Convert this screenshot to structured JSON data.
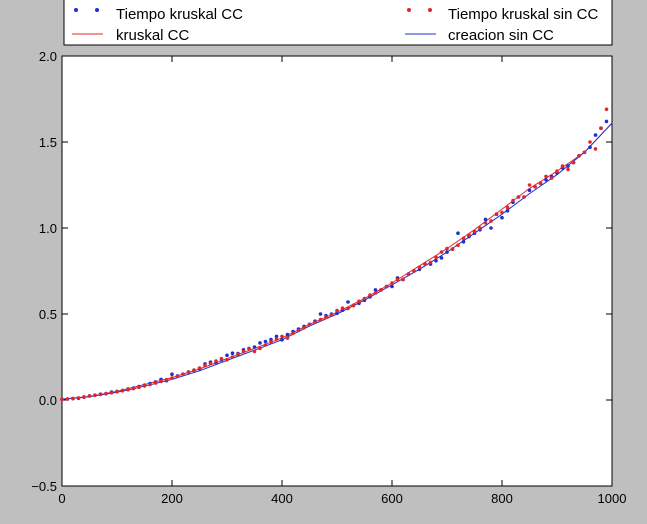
{
  "chart_data": {
    "type": "line",
    "title": "",
    "xlabel": "",
    "ylabel": "",
    "xlim": [
      0,
      1000
    ],
    "ylim": [
      -0.5,
      2.0
    ],
    "xticks": [
      "0",
      "200",
      "400",
      "600",
      "800",
      "1000"
    ],
    "yticks": [
      "−0.5",
      "0.0",
      "0.5",
      "1.0",
      "1.5",
      "2.0"
    ],
    "grid": false,
    "legend_position": "top",
    "colors": {
      "blue": "#1f2fd0",
      "red": "#e0282a"
    },
    "series": [
      {
        "name": "Tiempo kruskal CC",
        "kind": "scatter",
        "color": "#1f2fd0",
        "x": [
          0,
          10,
          20,
          30,
          40,
          50,
          60,
          70,
          80,
          90,
          100,
          110,
          120,
          130,
          140,
          150,
          160,
          170,
          180,
          190,
          200,
          210,
          220,
          230,
          240,
          250,
          260,
          270,
          280,
          290,
          300,
          310,
          320,
          330,
          340,
          350,
          360,
          370,
          380,
          390,
          400,
          410,
          420,
          430,
          440,
          450,
          460,
          470,
          480,
          490,
          500,
          510,
          520,
          530,
          540,
          550,
          560,
          570,
          580,
          590,
          600,
          610,
          620,
          630,
          640,
          650,
          660,
          670,
          680,
          690,
          700,
          710,
          720,
          730,
          740,
          750,
          760,
          770,
          780,
          790,
          800,
          810,
          820,
          830,
          840,
          850,
          860,
          870,
          880,
          890,
          900,
          910,
          920,
          930,
          940,
          950,
          960,
          970,
          980,
          990
        ],
        "y": [
          0.004,
          0.006,
          0.008,
          0.01,
          0.018,
          0.024,
          0.028,
          0.034,
          0.038,
          0.046,
          0.05,
          0.056,
          0.064,
          0.07,
          0.078,
          0.086,
          0.096,
          0.104,
          0.12,
          0.112,
          0.15,
          0.14,
          0.15,
          0.162,
          0.172,
          0.182,
          0.21,
          0.22,
          0.218,
          0.234,
          0.26,
          0.272,
          0.27,
          0.292,
          0.3,
          0.308,
          0.332,
          0.34,
          0.352,
          0.37,
          0.35,
          0.38,
          0.398,
          0.412,
          0.428,
          0.44,
          0.458,
          0.5,
          0.49,
          0.5,
          0.504,
          0.522,
          0.57,
          0.55,
          0.562,
          0.58,
          0.6,
          0.64,
          0.64,
          0.66,
          0.66,
          0.71,
          0.7,
          0.732,
          0.75,
          0.76,
          0.79,
          0.79,
          0.81,
          0.826,
          0.86,
          0.878,
          0.97,
          0.92,
          0.95,
          0.97,
          0.99,
          1.05,
          1.0,
          1.08,
          1.06,
          1.1,
          1.15,
          1.18,
          1.18,
          1.22,
          1.24,
          1.26,
          1.28,
          1.3,
          1.32,
          1.35,
          1.36,
          1.38,
          1.42,
          1.44,
          1.47,
          1.54,
          1.58,
          1.62
        ]
      },
      {
        "name": "Tiempo kruskal sin CC",
        "kind": "scatter",
        "color": "#e0282a",
        "x": [
          0,
          10,
          20,
          30,
          40,
          50,
          60,
          70,
          80,
          90,
          100,
          110,
          120,
          130,
          140,
          150,
          160,
          170,
          180,
          190,
          200,
          210,
          220,
          230,
          240,
          250,
          260,
          270,
          280,
          290,
          300,
          310,
          320,
          330,
          340,
          350,
          360,
          370,
          380,
          390,
          400,
          410,
          420,
          430,
          440,
          450,
          460,
          470,
          480,
          490,
          500,
          510,
          520,
          530,
          540,
          550,
          560,
          570,
          580,
          590,
          600,
          610,
          620,
          630,
          640,
          650,
          660,
          670,
          680,
          690,
          700,
          710,
          720,
          730,
          740,
          750,
          760,
          770,
          780,
          790,
          800,
          810,
          820,
          830,
          840,
          850,
          860,
          870,
          880,
          890,
          900,
          910,
          920,
          930,
          940,
          950,
          960,
          970,
          980,
          990
        ],
        "y": [
          0.004,
          0.006,
          0.008,
          0.012,
          0.016,
          0.024,
          0.028,
          0.032,
          0.036,
          0.042,
          0.048,
          0.054,
          0.06,
          0.066,
          0.074,
          0.082,
          0.09,
          0.098,
          0.108,
          0.118,
          0.128,
          0.138,
          0.15,
          0.162,
          0.174,
          0.186,
          0.2,
          0.212,
          0.226,
          0.24,
          0.234,
          0.25,
          0.266,
          0.282,
          0.298,
          0.282,
          0.3,
          0.32,
          0.338,
          0.354,
          0.37,
          0.36,
          0.388,
          0.404,
          0.42,
          0.44,
          0.452,
          0.468,
          0.48,
          0.496,
          0.52,
          0.534,
          0.532,
          0.55,
          0.574,
          0.59,
          0.61,
          0.622,
          0.64,
          0.66,
          0.68,
          0.7,
          0.702,
          0.73,
          0.75,
          0.772,
          0.79,
          0.8,
          0.83,
          0.86,
          0.88,
          0.876,
          0.9,
          0.94,
          0.96,
          0.98,
          1.0,
          1.03,
          1.04,
          1.08,
          1.09,
          1.12,
          1.16,
          1.18,
          1.18,
          1.25,
          1.24,
          1.26,
          1.3,
          1.29,
          1.33,
          1.36,
          1.34,
          1.38,
          1.42,
          1.44,
          1.5,
          1.46,
          1.58,
          1.69
        ]
      },
      {
        "name": "kruskal CC",
        "kind": "line",
        "color": "#e0282a",
        "x": [
          0,
          50,
          100,
          150,
          200,
          250,
          300,
          350,
          400,
          450,
          500,
          550,
          600,
          650,
          700,
          750,
          800,
          850,
          900,
          950,
          1000
        ],
        "y": [
          0.005,
          0.02,
          0.05,
          0.09,
          0.13,
          0.18,
          0.24,
          0.3,
          0.36,
          0.44,
          0.51,
          0.59,
          0.68,
          0.78,
          0.88,
          0.99,
          1.11,
          1.23,
          1.33,
          1.44,
          1.61
        ]
      },
      {
        "name": "creacion sin CC",
        "kind": "line",
        "color": "#1f2fd0",
        "x": [
          0,
          50,
          100,
          150,
          200,
          250,
          300,
          350,
          400,
          450,
          500,
          550,
          600,
          650,
          700,
          750,
          800,
          850,
          900,
          950,
          1000
        ],
        "y": [
          0.005,
          0.02,
          0.045,
          0.08,
          0.12,
          0.17,
          0.23,
          0.29,
          0.35,
          0.43,
          0.5,
          0.58,
          0.67,
          0.76,
          0.86,
          0.97,
          1.08,
          1.2,
          1.31,
          1.44,
          1.61
        ]
      }
    ]
  }
}
